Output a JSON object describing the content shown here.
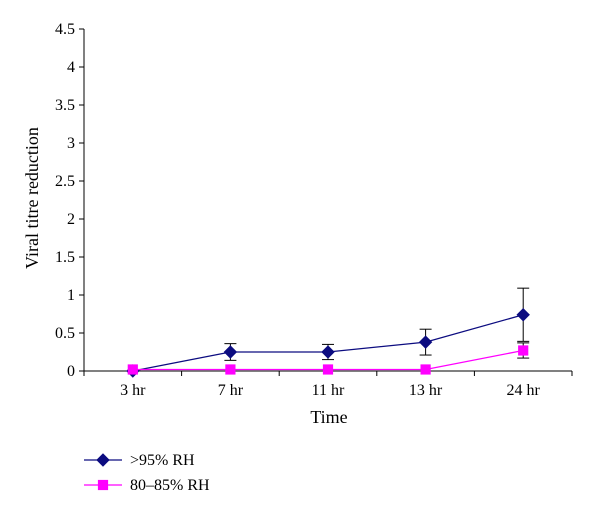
{
  "chart_data": {
    "type": "line",
    "xlabel": "Time",
    "ylabel": "Viral titre reduction",
    "categories": [
      "3 hr",
      "7 hr",
      "11 hr",
      "13 hr",
      "24 hr"
    ],
    "ylim": [
      0,
      4.5
    ],
    "yticks": [
      "0",
      "0.5",
      "1",
      "1.5",
      "2",
      "2.5",
      "3",
      "3.5",
      "4",
      "4.5"
    ],
    "grid": false,
    "legend_position": "bottom-left",
    "series": [
      {
        "name": ">95% RH",
        "color": "#0c0c80",
        "marker": "diamond",
        "values": [
          0,
          0.25,
          0.25,
          0.38,
          0.74
        ],
        "error": [
          0,
          0.11,
          0.1,
          0.17,
          0.35
        ]
      },
      {
        "name": "80–85% RH",
        "color": "#ff00ff",
        "marker": "square",
        "values": [
          0.02,
          0.02,
          0.02,
          0.02,
          0.27
        ],
        "error": [
          0,
          0,
          0,
          0,
          0.1
        ]
      }
    ]
  }
}
